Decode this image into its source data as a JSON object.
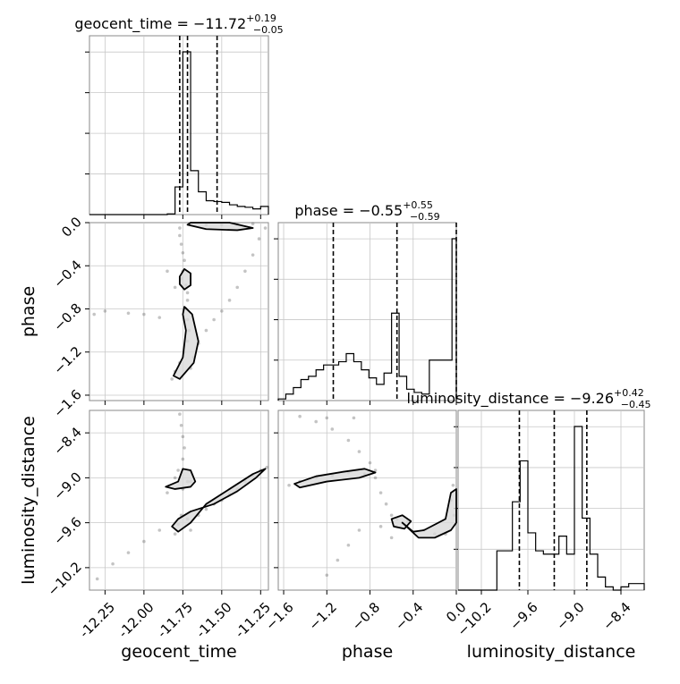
{
  "chart_data": {
    "type": "corner",
    "parameters": [
      {
        "name": "geocent_time",
        "xlim": [
          -12.35,
          -11.2
        ],
        "ticks": [
          "-12.25",
          "-12.00",
          "-11.75",
          "-11.50",
          "-11.25"
        ],
        "tick_values": [
          -12.25,
          -12.0,
          -11.75,
          -11.5,
          -11.25
        ],
        "title_name": "geocent_time",
        "title_median": "−11.72",
        "title_plus": "+0.19",
        "title_minus": "−0.05",
        "quantiles": [
          -11.77,
          -11.72,
          -11.53
        ],
        "hist_edges": [
          -12.35,
          -12.3,
          -12.25,
          -12.2,
          -12.15,
          -12.1,
          -12.05,
          -12.0,
          -11.95,
          -11.9,
          -11.85,
          -11.8,
          -11.75,
          -11.7,
          -11.65,
          -11.6,
          -11.55,
          -11.5,
          -11.45,
          -11.4,
          -11.35,
          -11.3,
          -11.25,
          -11.2
        ],
        "hist_values": [
          0,
          0,
          0,
          0,
          0,
          0,
          0,
          0,
          0,
          0,
          0.004,
          0.17,
          1.0,
          0.27,
          0.14,
          0.085,
          0.08,
          0.075,
          0.06,
          0.05,
          0.045,
          0.035,
          0.05
        ],
        "axis_label": "geocent_time"
      },
      {
        "name": "phase",
        "xlim": [
          -1.65,
          0.0
        ],
        "ticks": [
          "−1.6",
          "−1.2",
          "−0.8",
          "−0.4",
          "0.0"
        ],
        "tick_values": [
          -1.6,
          -1.2,
          -0.8,
          -0.4,
          0.0
        ],
        "title_name": "phase",
        "title_median": "−0.55",
        "title_plus": "+0.55",
        "title_minus": "−0.59",
        "quantiles": [
          -1.14,
          -0.55,
          0.0
        ],
        "hist_edges": [
          -1.65,
          -1.58,
          -1.51,
          -1.44,
          -1.37,
          -1.3,
          -1.23,
          -1.16,
          -1.09,
          -1.02,
          -0.95,
          -0.88,
          -0.81,
          -0.74,
          -0.67,
          -0.6,
          -0.53,
          -0.46,
          -0.39,
          -0.32,
          -0.25,
          -0.18,
          -0.11,
          -0.04,
          0.0
        ],
        "hist_values": [
          0.01,
          0.04,
          0.08,
          0.13,
          0.15,
          0.19,
          0.22,
          0.22,
          0.24,
          0.29,
          0.24,
          0.19,
          0.14,
          0.1,
          0.17,
          0.54,
          0.15,
          0.07,
          0.05,
          0.04,
          0.25,
          0.25,
          0.25,
          1.0
        ],
        "axis_label": "phase"
      },
      {
        "name": "luminosity_distance",
        "xlim": [
          -10.5,
          -8.1
        ],
        "ticks": [
          "−10.2",
          "−9.6",
          "−9.0",
          "−8.4"
        ],
        "tick_values": [
          -10.2,
          -9.6,
          -9.0,
          -8.4
        ],
        "title_name": "luminosity_distance",
        "title_median": "−9.26",
        "title_plus": "+0.42",
        "title_minus": "−0.45",
        "quantiles": [
          -9.71,
          -9.26,
          -8.84
        ],
        "hist_edges": [
          -10.5,
          -10.4,
          -10.3,
          -10.2,
          -10.1,
          -10.0,
          -9.9,
          -9.8,
          -9.7,
          -9.6,
          -9.5,
          -9.4,
          -9.3,
          -9.2,
          -9.1,
          -9.0,
          -8.9,
          -8.8,
          -8.7,
          -8.6,
          -8.5,
          -8.4,
          -8.3,
          -8.2,
          -8.1
        ],
        "hist_values": [
          0,
          0,
          0,
          0,
          0.0,
          0.24,
          0.24,
          0.54,
          0.79,
          0.35,
          0.24,
          0.22,
          0.22,
          0.33,
          0.22,
          1.0,
          0.44,
          0.22,
          0.08,
          0.02,
          0.0,
          0.02,
          0.04,
          0.04
        ],
        "axis_label": "luminosity_distance"
      }
    ],
    "pairs": [
      {
        "x": "geocent_time",
        "y": "phase",
        "yticks": [
          "0.0",
          "−0.4",
          "−0.8",
          "−1.2",
          "−1.6"
        ],
        "ytick_values": [
          0.0,
          -0.4,
          -0.8,
          -1.2,
          -1.6
        ],
        "ylim": [
          -1.65,
          0.0
        ],
        "ylabel": "phase",
        "samples": [
          [
            -11.77,
            -0.05
          ],
          [
            -11.77,
            -0.12
          ],
          [
            -11.76,
            -0.2
          ],
          [
            -11.75,
            -0.28
          ],
          [
            -11.74,
            -0.35
          ],
          [
            -11.75,
            -0.45
          ],
          [
            -11.76,
            -0.52
          ],
          [
            -11.73,
            -0.58
          ],
          [
            -11.72,
            -0.65
          ],
          [
            -11.72,
            -0.72
          ],
          [
            -11.73,
            -0.8
          ],
          [
            -11.72,
            -0.9
          ],
          [
            -11.71,
            -1.0
          ],
          [
            -11.72,
            -1.1
          ],
          [
            -11.74,
            -1.2
          ],
          [
            -11.77,
            -1.3
          ],
          [
            -11.8,
            -1.38
          ],
          [
            -11.82,
            -1.45
          ],
          [
            -11.7,
            -1.35
          ],
          [
            -11.68,
            -1.25
          ],
          [
            -11.65,
            -1.12
          ],
          [
            -11.6,
            -1.0
          ],
          [
            -11.55,
            -0.9
          ],
          [
            -11.5,
            -0.82
          ],
          [
            -11.45,
            -0.72
          ],
          [
            -11.4,
            -0.6
          ],
          [
            -11.35,
            -0.45
          ],
          [
            -11.3,
            -0.3
          ],
          [
            -11.26,
            -0.15
          ],
          [
            -11.22,
            -0.05
          ],
          [
            -11.9,
            -0.88
          ],
          [
            -12.0,
            -0.85
          ],
          [
            -12.1,
            -0.84
          ],
          [
            -12.25,
            -0.82
          ],
          [
            -12.32,
            -0.85
          ],
          [
            -11.6,
            -0.02
          ],
          [
            -11.5,
            -0.02
          ],
          [
            -11.4,
            -0.02
          ],
          [
            -11.3,
            -0.01
          ],
          [
            -11.85,
            -0.45
          ],
          [
            -11.8,
            -0.6
          ]
        ]
      },
      {
        "x": "geocent_time",
        "y": "luminosity_distance",
        "yticks": [
          "−8.4",
          "−9.0",
          "−9.6",
          "−10.2"
        ],
        "ytick_values": [
          -8.4,
          -9.0,
          -9.6,
          -10.2
        ],
        "ylim": [
          -10.5,
          -8.1
        ],
        "ylabel": "luminosity_distance",
        "samples": [
          [
            -11.77,
            -8.15
          ],
          [
            -11.76,
            -8.3
          ],
          [
            -11.75,
            -8.45
          ],
          [
            -11.74,
            -8.6
          ],
          [
            -11.75,
            -8.75
          ],
          [
            -11.78,
            -8.9
          ],
          [
            -11.72,
            -9.05
          ],
          [
            -11.75,
            -9.15
          ],
          [
            -11.8,
            -9.0
          ],
          [
            -11.7,
            -9.05
          ],
          [
            -11.76,
            -9.5
          ],
          [
            -11.78,
            -9.62
          ],
          [
            -11.72,
            -9.55
          ],
          [
            -11.65,
            -9.5
          ],
          [
            -11.6,
            -9.42
          ],
          [
            -11.55,
            -9.35
          ],
          [
            -11.5,
            -9.3
          ],
          [
            -11.45,
            -9.22
          ],
          [
            -11.4,
            -9.15
          ],
          [
            -11.35,
            -9.05
          ],
          [
            -11.3,
            -8.97
          ],
          [
            -11.25,
            -8.9
          ],
          [
            -11.21,
            -8.86
          ],
          [
            -11.9,
            -9.7
          ],
          [
            -12.0,
            -9.85
          ],
          [
            -12.1,
            -10.0
          ],
          [
            -12.2,
            -10.15
          ],
          [
            -12.3,
            -10.35
          ],
          [
            -11.8,
            -9.75
          ],
          [
            -11.7,
            -9.7
          ],
          [
            -11.85,
            -9.2
          ]
        ]
      },
      {
        "x": "phase",
        "y": "luminosity_distance",
        "yticks": [],
        "ytick_values": [],
        "ylim": [
          -10.5,
          -8.1
        ],
        "ylabel": "",
        "samples": [
          [
            -1.45,
            -9.05
          ],
          [
            -1.3,
            -9.0
          ],
          [
            -1.15,
            -8.97
          ],
          [
            -1.0,
            -8.93
          ],
          [
            -0.85,
            -8.95
          ],
          [
            -0.75,
            -8.9
          ],
          [
            -1.55,
            -9.1
          ],
          [
            -0.55,
            -9.55
          ],
          [
            -0.5,
            -9.6
          ],
          [
            -0.45,
            -9.58
          ],
          [
            -0.6,
            -9.5
          ],
          [
            -0.65,
            -9.35
          ],
          [
            -0.7,
            -9.2
          ],
          [
            -0.75,
            -9.0
          ],
          [
            -0.8,
            -8.8
          ],
          [
            -0.9,
            -8.65
          ],
          [
            -1.0,
            -8.5
          ],
          [
            -1.15,
            -8.35
          ],
          [
            -1.3,
            -8.25
          ],
          [
            -1.45,
            -8.18
          ],
          [
            -0.9,
            -9.7
          ],
          [
            -1.0,
            -9.9
          ],
          [
            -1.1,
            -10.1
          ],
          [
            -1.2,
            -10.3
          ],
          [
            -0.7,
            -9.65
          ],
          [
            -0.05,
            -9.3
          ],
          [
            -0.02,
            -9.5
          ],
          [
            -0.03,
            -9.1
          ],
          [
            -0.3,
            -9.7
          ],
          [
            -0.2,
            -9.75
          ],
          [
            -0.1,
            -9.75
          ],
          [
            -1.2,
            -8.2
          ],
          [
            -0.95,
            -8.2
          ],
          [
            -0.6,
            -9.8
          ]
        ]
      }
    ]
  }
}
